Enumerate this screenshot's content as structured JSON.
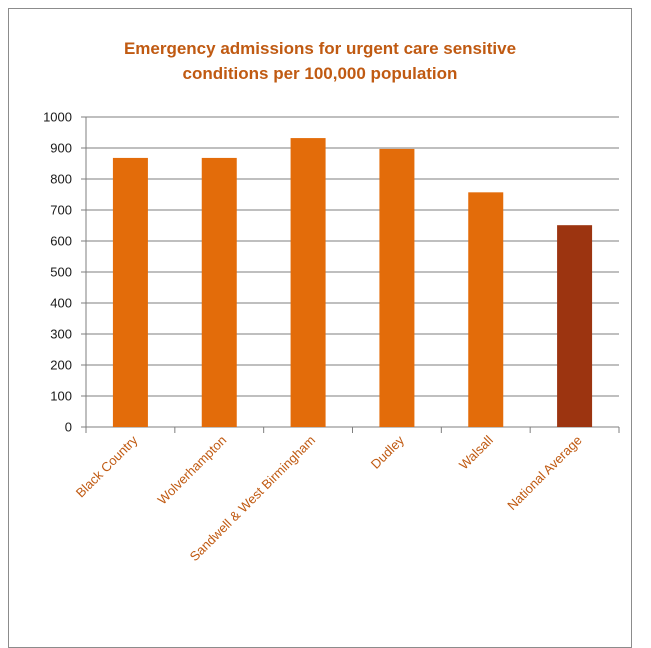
{
  "chart_data": {
    "type": "bar",
    "title_lines": [
      "Emergency admissions for urgent care sensitive",
      "conditions per 100,000 population"
    ],
    "categories": [
      "Black Country",
      "Wolverhampton",
      "Sandwell & West Birmingham",
      "Dudley",
      "Walsall",
      "National Average"
    ],
    "values": [
      868,
      868,
      932,
      897,
      757,
      651
    ],
    "ylim": [
      0,
      1000
    ],
    "yticks": [
      0,
      100,
      200,
      300,
      400,
      500,
      600,
      700,
      800,
      900,
      1000
    ],
    "grid": true,
    "legend": "none",
    "colors": {
      "bar": "#e36c0a",
      "highlight_bar": "#9c3410",
      "title": "#c05a12",
      "category_label": "#c05a12",
      "gridline": "#7f7f7f"
    },
    "highlight_index": 5
  }
}
